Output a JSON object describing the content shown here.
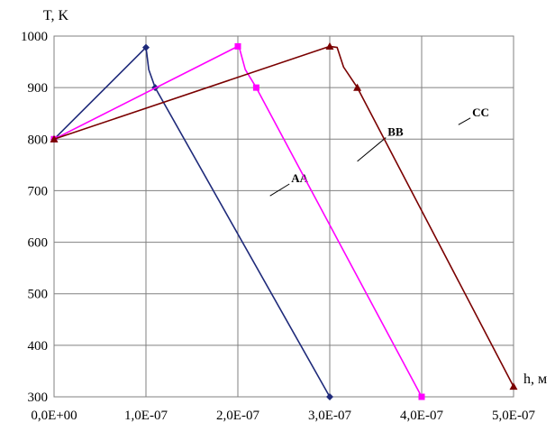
{
  "chart_data": {
    "type": "line",
    "ylabel": "T, K",
    "xlabel": "h, м",
    "xlim": [
      0,
      5e-07
    ],
    "ylim": [
      300,
      1000
    ],
    "x_ticks": [
      0,
      1e-07,
      2e-07,
      3e-07,
      4e-07,
      5e-07
    ],
    "x_tick_labels": [
      "0,0E+00",
      "1,0E-07",
      "2,0E-07",
      "3,0E-07",
      "4,0E-07",
      "5,0E-07"
    ],
    "y_ticks": [
      300,
      400,
      500,
      600,
      700,
      800,
      900,
      1000
    ],
    "y_tick_labels": [
      "300",
      "400",
      "500",
      "600",
      "700",
      "800",
      "900",
      "1000"
    ],
    "grid": true,
    "series": [
      {
        "name": "AA",
        "color": "#1f2a7a",
        "marker": "diamond",
        "line": [
          [
            0,
            800
          ],
          [
            1e-07,
            978
          ],
          [
            1.01e-07,
            965
          ],
          [
            1.03e-07,
            935
          ],
          [
            1.1e-07,
            900
          ],
          [
            3e-07,
            300
          ]
        ],
        "markers": [
          [
            0,
            800
          ],
          [
            1e-07,
            978
          ],
          [
            1.1e-07,
            900
          ],
          [
            3e-07,
            300
          ]
        ],
        "label_at": [
          2.6e-07,
          720
        ],
        "leader_to": [
          2.35e-07,
          690
        ]
      },
      {
        "name": "BB",
        "color": "#ff00ff",
        "marker": "square",
        "line": [
          [
            0,
            800
          ],
          [
            2e-07,
            980
          ],
          [
            2.02e-07,
            975
          ],
          [
            2.08e-07,
            935
          ],
          [
            2.2e-07,
            900
          ],
          [
            4e-07,
            300
          ]
        ],
        "markers": [
          [
            0,
            800
          ],
          [
            2e-07,
            980
          ],
          [
            2.2e-07,
            900
          ],
          [
            4e-07,
            300
          ]
        ],
        "label_at": [
          3.65e-07,
          810
        ],
        "leader_to": [
          3.3e-07,
          757
        ]
      },
      {
        "name": "CC",
        "color": "#7a0000",
        "marker": "triangle",
        "line": [
          [
            0,
            800
          ],
          [
            3e-07,
            980
          ],
          [
            3.08e-07,
            978
          ],
          [
            3.15e-07,
            940
          ],
          [
            3.3e-07,
            900
          ],
          [
            5e-07,
            320
          ]
        ],
        "markers": [
          [
            0,
            800
          ],
          [
            3e-07,
            980
          ],
          [
            3.3e-07,
            900
          ],
          [
            5e-07,
            320
          ]
        ],
        "label_at": [
          4.57e-07,
          848
        ],
        "leader_to": [
          4.4e-07,
          828
        ]
      }
    ]
  }
}
